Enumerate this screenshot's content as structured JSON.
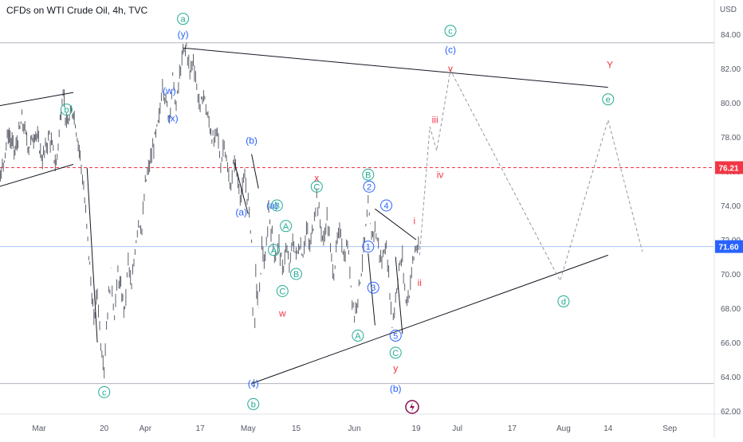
{
  "header": {
    "title": "CFDs on WTI Crude Oil, 4h, TVC",
    "currency": "USD"
  },
  "chart_data": {
    "type": "line",
    "title": "CFDs on WTI Crude Oil, 4h, TVC",
    "ylabel": "USD",
    "ylim": [
      61.5,
      85.2
    ],
    "y_ticks": [
      62,
      64,
      66,
      68,
      70,
      72,
      74,
      76,
      78,
      80,
      82,
      84
    ],
    "x_ticks": [
      "Mar",
      "20",
      "Apr",
      "17",
      "May",
      "15",
      "Jun",
      "19",
      "Jul",
      "17",
      "Aug",
      "14",
      "Sep"
    ],
    "x_tick_days": [
      0,
      19,
      31,
      47,
      61,
      75,
      92,
      110,
      122,
      138,
      153,
      166,
      184
    ],
    "price_path": [
      [
        -25,
        77.0
      ],
      [
        -22,
        78.8
      ],
      [
        -20,
        76.2
      ],
      [
        -17,
        74.1
      ],
      [
        -14,
        76.8
      ],
      [
        -11,
        75.9
      ],
      [
        -9,
        78.2
      ],
      [
        -7,
        77.1
      ],
      [
        -5,
        79.0
      ],
      [
        -3,
        77.4
      ],
      [
        -1,
        78.3
      ],
      [
        1,
        76.7
      ],
      [
        3,
        78.1
      ],
      [
        5,
        76.3
      ],
      [
        7,
        80.9
      ],
      [
        8,
        78.6
      ],
      [
        10,
        79.6
      ],
      [
        12,
        76.9
      ],
      [
        13,
        75.0
      ],
      [
        14.5,
        71.2
      ],
      [
        16,
        67.2
      ],
      [
        17,
        69.0
      ],
      [
        18,
        66.0
      ],
      [
        19,
        64.6
      ],
      [
        20,
        68.0
      ],
      [
        21,
        70.0
      ],
      [
        22,
        67.6
      ],
      [
        23,
        70.0
      ],
      [
        25,
        67.8
      ],
      [
        26,
        70.8
      ],
      [
        27,
        69.0
      ],
      [
        28,
        71.5
      ],
      [
        29,
        73.2
      ],
      [
        30,
        72.6
      ],
      [
        31,
        75.2
      ],
      [
        35,
        79.0
      ],
      [
        36,
        81.2
      ],
      [
        37,
        80.0
      ],
      [
        38,
        79.2
      ],
      [
        39,
        81.4
      ],
      [
        40,
        79.7
      ],
      [
        41,
        81.6
      ],
      [
        42,
        82.8
      ],
      [
        43,
        83.3
      ],
      [
        44,
        81.7
      ],
      [
        45,
        82.6
      ],
      [
        46,
        80.9
      ],
      [
        47,
        79.6
      ],
      [
        48,
        80.6
      ],
      [
        49,
        79.3
      ],
      [
        51,
        77.6
      ],
      [
        52,
        78.4
      ],
      [
        53,
        76.3
      ],
      [
        54,
        77.9
      ],
      [
        55,
        75.9
      ],
      [
        56,
        75.1
      ],
      [
        57,
        76.7
      ],
      [
        58,
        75.4
      ],
      [
        59,
        74.5
      ],
      [
        60,
        75.6
      ],
      [
        61,
        74.2
      ],
      [
        62,
        72.0
      ],
      [
        62.7,
        63.8
      ],
      [
        63.2,
        70.0
      ],
      [
        64,
        67.8
      ],
      [
        65,
        71.6
      ],
      [
        66,
        70.5
      ],
      [
        67,
        73.8
      ],
      [
        68,
        72.1
      ],
      [
        69,
        71.0
      ],
      [
        70,
        71.8
      ],
      [
        71,
        70.1
      ],
      [
        72,
        71.6
      ],
      [
        73,
        70.3
      ],
      [
        74,
        72.0
      ],
      [
        75,
        71.0
      ],
      [
        76,
        71.8
      ],
      [
        77,
        71.2
      ],
      [
        78,
        72.6
      ],
      [
        79,
        71.5
      ],
      [
        80,
        72.9
      ],
      [
        81,
        74.6
      ],
      [
        82,
        73.0
      ],
      [
        83,
        71.8
      ],
      [
        84,
        73.4
      ],
      [
        85,
        71.4
      ],
      [
        86,
        70.0
      ],
      [
        87,
        71.9
      ],
      [
        88,
        72.5
      ],
      [
        89,
        70.9
      ],
      [
        90,
        71.8
      ],
      [
        91,
        69.4
      ],
      [
        92,
        67.5
      ],
      [
        93,
        68.8
      ],
      [
        94,
        70.2
      ],
      [
        95,
        72.0
      ],
      [
        96,
        73.8
      ],
      [
        97,
        72.2
      ],
      [
        98,
        72.7
      ],
      [
        99,
        71.6
      ],
      [
        100,
        70.6
      ],
      [
        101,
        71.9
      ],
      [
        102,
        70.0
      ],
      [
        103,
        67.0
      ],
      [
        104,
        68.6
      ],
      [
        105,
        70.3
      ],
      [
        106,
        70.9
      ],
      [
        107,
        68.4
      ],
      [
        108,
        68.9
      ],
      [
        109,
        70.7
      ],
      [
        110,
        71.6
      ],
      [
        111,
        71.2
      ]
    ],
    "trend_lines": [
      {
        "name": "upper-triangle-line",
        "points": [
          [
            42,
            83.2
          ],
          [
            166,
            80.9
          ]
        ]
      },
      {
        "name": "lower-triangle-line",
        "points": [
          [
            62,
            63.6
          ],
          [
            166,
            71.1
          ]
        ]
      },
      {
        "name": "early-resistance-line",
        "points": [
          [
            -40,
            78.8
          ],
          [
            10,
            80.6
          ]
        ]
      },
      {
        "name": "early-support-line",
        "points": [
          [
            -30,
            74.0
          ],
          [
            10,
            76.4
          ]
        ]
      },
      {
        "name": "b-wave-line",
        "points": [
          [
            62,
            77.0
          ],
          [
            64,
            75.0
          ]
        ]
      },
      {
        "name": "short-resistance-line",
        "points": [
          [
            98,
            73.8
          ],
          [
            110,
            72.0
          ]
        ]
      },
      {
        "name": "descent-line-left",
        "points": [
          [
            14,
            76.2
          ],
          [
            17,
            66.0
          ]
        ]
      },
      {
        "name": "descent-line-right",
        "points": [
          [
            57,
            76.5
          ],
          [
            61,
            73.5
          ]
        ]
      },
      {
        "name": "wave-3-line",
        "points": [
          [
            96,
            71.2
          ],
          [
            98,
            67.0
          ]
        ]
      },
      {
        "name": "wave-5-line",
        "points": [
          [
            104,
            71.0
          ],
          [
            106,
            66.5
          ]
        ]
      }
    ],
    "projection": [
      [
        111,
        71.1
      ],
      [
        114,
        78.6
      ],
      [
        116,
        77.2
      ],
      [
        120,
        81.9
      ],
      [
        152,
        69.6
      ],
      [
        166,
        79.0
      ],
      [
        176,
        71.3
      ]
    ],
    "horizontal_lines": [
      {
        "name": "resistance-line",
        "y": 83.5,
        "color": "#b2b5be",
        "style": "solid"
      },
      {
        "name": "level-76-21-line",
        "y": 76.21,
        "color": "#f23645",
        "style": "dashed"
      },
      {
        "name": "current-price-line",
        "y": 71.6,
        "color": "#a9c4f5",
        "style": "solid"
      },
      {
        "name": "support-line",
        "y": 63.6,
        "color": "#b2b5be",
        "style": "solid"
      }
    ],
    "price_labels": [
      {
        "name": "level-76-21-tag",
        "text": "76.21",
        "y": 76.21,
        "color": "#f23645"
      },
      {
        "name": "current-price-tag",
        "text": "71.60",
        "y": 71.6,
        "color": "#2962ff"
      }
    ],
    "wave_labels": [
      {
        "text": "a",
        "day": 42,
        "y": 84.9,
        "color": "#22ab94",
        "circled": true
      },
      {
        "text": "(y)",
        "day": 42,
        "y": 84.0,
        "color": "#2962ff",
        "circled": false
      },
      {
        "text": "(w)",
        "day": 38,
        "y": 80.7,
        "color": "#2962ff",
        "circled": false
      },
      {
        "text": "(x)",
        "day": 39,
        "y": 79.1,
        "color": "#2962ff",
        "circled": false
      },
      {
        "text": "b",
        "day": 8,
        "y": 79.6,
        "color": "#22ab94",
        "circled": true
      },
      {
        "text": "c",
        "day": 19,
        "y": 63.1,
        "color": "#22ab94",
        "circled": true
      },
      {
        "text": "(b)",
        "day": 62,
        "y": 77.8,
        "color": "#2962ff",
        "circled": false
      },
      {
        "text": "(a)",
        "day": 59,
        "y": 73.6,
        "color": "#2962ff",
        "circled": false
      },
      {
        "text": "(a)",
        "day": 68,
        "y": 74.0,
        "color": "#2962ff",
        "circled": false
      },
      {
        "text": "B",
        "day": 69.4,
        "y": 74.0,
        "color": "#22ab94",
        "circled": true
      },
      {
        "text": "A",
        "day": 68.5,
        "y": 71.4,
        "color": "#22ab94",
        "circled": true
      },
      {
        "text": "A",
        "day": 72,
        "y": 72.8,
        "color": "#22ab94",
        "circled": true
      },
      {
        "text": "B",
        "day": 75,
        "y": 70.0,
        "color": "#22ab94",
        "circled": true
      },
      {
        "text": "C",
        "day": 71,
        "y": 69.0,
        "color": "#22ab94",
        "circled": true
      },
      {
        "text": "w",
        "day": 71,
        "y": 67.7,
        "color": "#f23645",
        "circled": false
      },
      {
        "text": "x",
        "day": 81,
        "y": 75.6,
        "color": "#f23645",
        "circled": false
      },
      {
        "text": "C",
        "day": 81,
        "y": 75.1,
        "color": "#22ab94",
        "circled": true
      },
      {
        "text": "B",
        "day": 96,
        "y": 75.8,
        "color": "#22ab94",
        "circled": true
      },
      {
        "text": "2",
        "day": 96.3,
        "y": 75.1,
        "color": "#2962ff",
        "circled": true
      },
      {
        "text": "4",
        "day": 101.3,
        "y": 74.0,
        "color": "#2962ff",
        "circled": true
      },
      {
        "text": "1",
        "day": 96,
        "y": 71.6,
        "color": "#2962ff",
        "circled": true
      },
      {
        "text": "3",
        "day": 97.5,
        "y": 69.2,
        "color": "#2962ff",
        "circled": true
      },
      {
        "text": "A",
        "day": 93,
        "y": 66.4,
        "color": "#22ab94",
        "circled": true
      },
      {
        "text": "5",
        "day": 104,
        "y": 66.4,
        "color": "#2962ff",
        "circled": true
      },
      {
        "text": "C",
        "day": 104,
        "y": 65.4,
        "color": "#22ab94",
        "circled": true
      },
      {
        "text": "y",
        "day": 104,
        "y": 64.5,
        "color": "#f23645",
        "circled": false
      },
      {
        "text": "(b)",
        "day": 104,
        "y": 63.3,
        "color": "#2962ff",
        "circled": false
      },
      {
        "text": "(c)",
        "day": 62.5,
        "y": 63.6,
        "color": "#2962ff",
        "circled": false
      },
      {
        "text": "b",
        "day": 62.5,
        "y": 62.4,
        "color": "#22ab94",
        "circled": true
      },
      {
        "text": "i",
        "day": 109.5,
        "y": 73.1,
        "color": "#f23645",
        "circled": false
      },
      {
        "text": "ii",
        "day": 111,
        "y": 69.5,
        "color": "#f23645",
        "circled": false
      },
      {
        "text": "iii",
        "day": 115.5,
        "y": 79.0,
        "color": "#f23645",
        "circled": false
      },
      {
        "text": "iv",
        "day": 117,
        "y": 75.8,
        "color": "#f23645",
        "circled": false
      },
      {
        "text": "v",
        "day": 120,
        "y": 82.0,
        "color": "#f23645",
        "circled": false
      },
      {
        "text": "(c)",
        "day": 120,
        "y": 83.1,
        "color": "#2962ff",
        "circled": false
      },
      {
        "text": "c",
        "day": 120,
        "y": 84.2,
        "color": "#22ab94",
        "circled": true
      },
      {
        "text": "Y",
        "day": 166.5,
        "y": 82.2,
        "color": "#f23645",
        "circled": false
      },
      {
        "text": "e",
        "day": 166,
        "y": 80.2,
        "color": "#22ab94",
        "circled": true
      },
      {
        "text": "d",
        "day": 153,
        "y": 68.4,
        "color": "#22ab94",
        "circled": true
      }
    ]
  }
}
